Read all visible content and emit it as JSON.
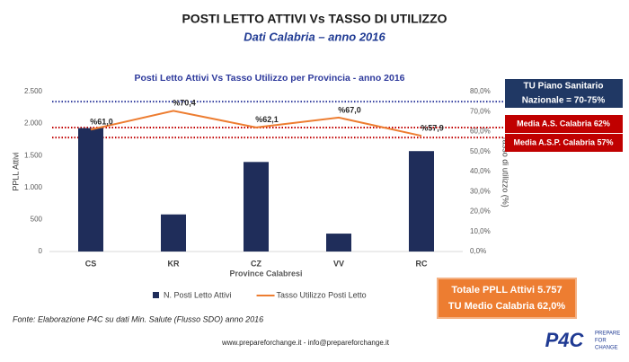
{
  "header": {
    "title": "POSTI LETTO ATTIVI Vs TASSO DI UTILIZZO",
    "subtitle": "Dati Calabria – anno 2016"
  },
  "chart_data": {
    "type": "bar",
    "title": "Posti Letto Attivi Vs Tasso Utilizzo per Provincia - anno 2016",
    "x_label": "Province Calabresi",
    "y_label": "PPLL Attivi",
    "y2_label": "Tasso di utilizzo (%)",
    "categories": [
      "CS",
      "KR",
      "CZ",
      "VV",
      "RC"
    ],
    "series": [
      {
        "name": "N. Posti Letto Attivi",
        "type": "bar",
        "color": "#1f2d5a",
        "values": [
          1930,
          580,
          1400,
          280,
          1570
        ]
      },
      {
        "name": "Tasso Utilizzo Posti Letto",
        "type": "line",
        "axis": "y2",
        "color": "#ed7d31",
        "values": [
          61.0,
          70.4,
          62.1,
          67.0,
          57.9
        ],
        "value_labels": [
          "%61,0",
          "%70,4",
          "%62,1",
          "%67,0",
          "%57,9"
        ]
      }
    ],
    "ylim": [
      0,
      2500
    ],
    "yticks": [
      0,
      500,
      {
        "value": 1000,
        "label": "1.000"
      },
      {
        "value": 1500,
        "label": "1.500"
      },
      {
        "value": 2000,
        "label": "2.000"
      },
      {
        "value": 2500,
        "label": "2.500"
      }
    ],
    "y2lim": [
      0,
      80
    ],
    "y2ticks": [
      {
        "value": 0,
        "label": "0,0%"
      },
      {
        "value": 10,
        "label": "10,0%"
      },
      {
        "value": 20,
        "label": "20,0%"
      },
      {
        "value": 30,
        "label": "30,0%"
      },
      {
        "value": 40,
        "label": "40,0%"
      },
      {
        "value": 50,
        "label": "50,0%"
      },
      {
        "value": 60,
        "label": "60,0%"
      },
      {
        "value": 70,
        "label": "70,0%"
      },
      {
        "value": 80,
        "label": "80,0%"
      }
    ],
    "grid": false,
    "legend": "bottom",
    "reference_lines": [
      {
        "value": 75,
        "color": "#2e3a9c",
        "label_lines": [
          "TU Piano Sanitario",
          "Nazionale = 70-75%"
        ],
        "box_color": "#203864"
      },
      {
        "value": 62,
        "color": "#c00000",
        "label_lines": [
          "Media A.S. Calabria 62%"
        ],
        "box_color": "#c00000"
      },
      {
        "value": 57,
        "color": "#c00000",
        "label_lines": [
          "Media A.S.P. Calabria 57%"
        ],
        "box_color": "#c00000"
      }
    ]
  },
  "summary": {
    "lines": [
      "Totale PPLL Attivi 5.757",
      "TU Medio Calabria 62,0%"
    ]
  },
  "source": "Fonte: Elaborazione P4C su dati Min. Salute (Flusso SDO) anno 2016",
  "footer": "www.prepareforchange.it - info@prepareforchange.it",
  "logo": {
    "mark": "P4C",
    "lines": [
      "PREPARE",
      "FOR",
      "CHANGE"
    ]
  }
}
